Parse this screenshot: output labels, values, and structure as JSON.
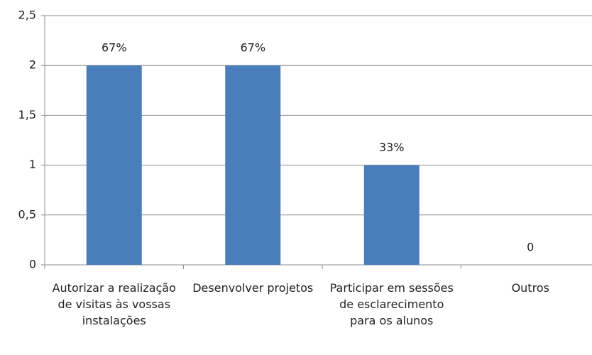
{
  "chart_data": {
    "type": "bar",
    "categories": [
      "Autorizar a realização de visitas às vossas instalações",
      "Desenvolver projetos",
      "Participar em sessões de esclarecimento para os alunos",
      "Outros"
    ],
    "values": [
      2,
      2,
      1,
      0
    ],
    "value_labels": [
      "67%",
      "67%",
      "33%",
      "0"
    ],
    "color": "#4a7ebb",
    "ylim": [
      0,
      2.5
    ],
    "yticks": [
      0,
      {
        "value": 0.5,
        "label": "0,5"
      },
      1,
      {
        "value": 1.5,
        "label": "1,5"
      },
      2,
      {
        "value": 2.5,
        "label": "2,5"
      }
    ],
    "grid": true
  }
}
